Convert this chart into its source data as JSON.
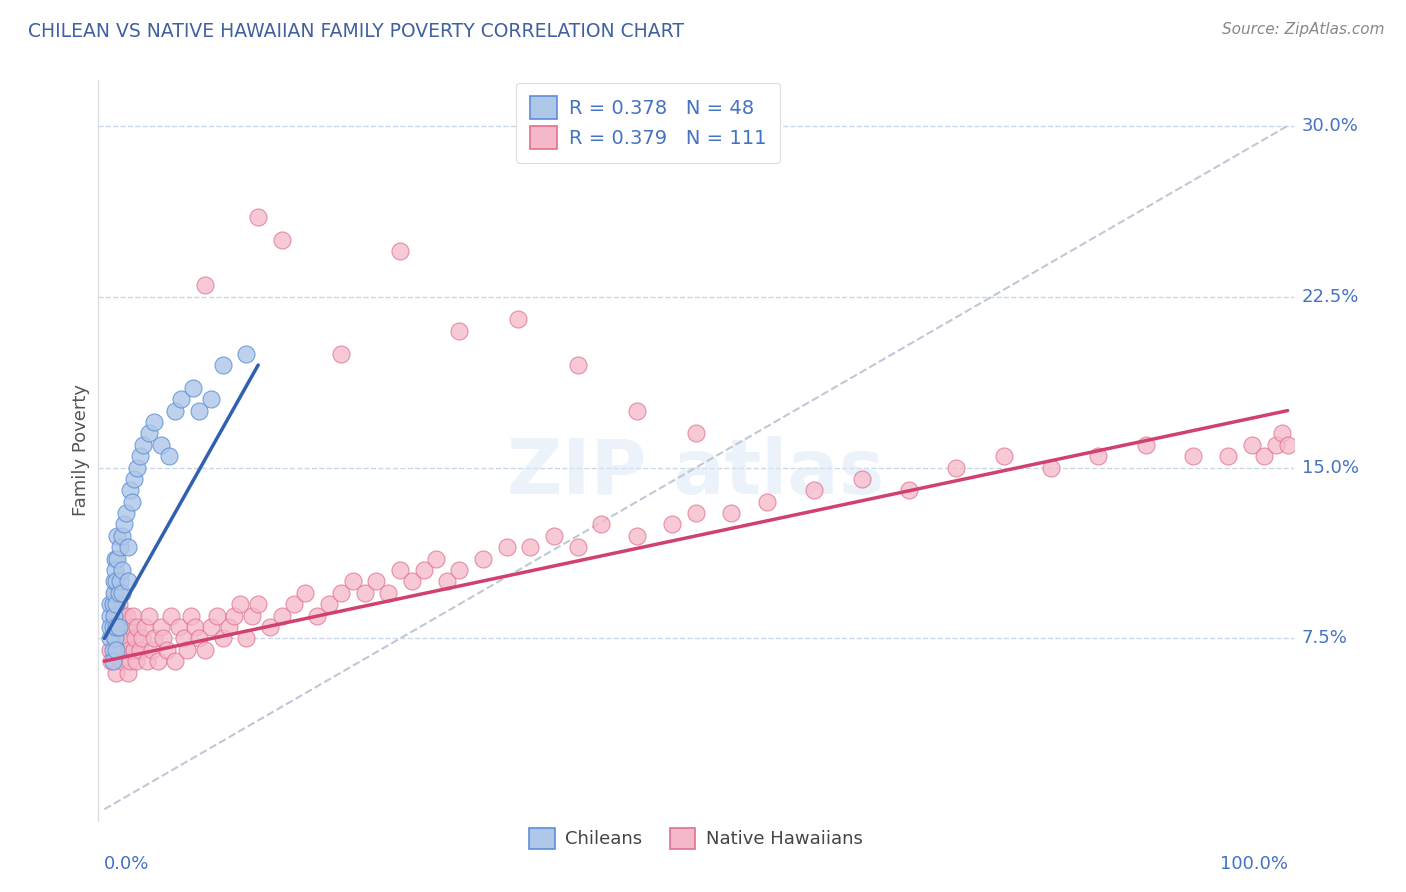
{
  "title": "CHILEAN VS NATIVE HAWAIIAN FAMILY POVERTY CORRELATION CHART",
  "source": "Source: ZipAtlas.com",
  "ylabel": "Family Poverty",
  "color_chilean_fill": "#aec6e8",
  "color_chilean_edge": "#5b8fd4",
  "color_hawaiian_fill": "#f5b8c8",
  "color_hawaiian_edge": "#e07090",
  "color_chilean_line": "#3060b0",
  "color_hawaiian_line": "#d04070",
  "color_ref_line": "#c0c8d8",
  "color_grid": "#c8d8e8",
  "color_title": "#4060a0",
  "color_axis_label": "#4472c4",
  "color_source": "#888888",
  "legend_r1": "R = 0.378   N = 48",
  "legend_r2": "R = 0.379   N = 111",
  "legend_sub1": "Chileans",
  "legend_sub2": "Native Hawaiians",
  "chilean_x": [
    0.005,
    0.005,
    0.005,
    0.005,
    0.007,
    0.007,
    0.007,
    0.007,
    0.008,
    0.008,
    0.008,
    0.009,
    0.009,
    0.009,
    0.01,
    0.01,
    0.01,
    0.01,
    0.011,
    0.011,
    0.012,
    0.012,
    0.013,
    0.013,
    0.015,
    0.015,
    0.015,
    0.017,
    0.018,
    0.02,
    0.02,
    0.022,
    0.023,
    0.025,
    0.028,
    0.03,
    0.033,
    0.038,
    0.042,
    0.048,
    0.055,
    0.06,
    0.065,
    0.075,
    0.08,
    0.09,
    0.1,
    0.12
  ],
  "chilean_y": [
    0.075,
    0.085,
    0.09,
    0.08,
    0.07,
    0.065,
    0.08,
    0.09,
    0.095,
    0.1,
    0.085,
    0.075,
    0.11,
    0.105,
    0.07,
    0.08,
    0.09,
    0.1,
    0.11,
    0.12,
    0.08,
    0.095,
    0.1,
    0.115,
    0.095,
    0.105,
    0.12,
    0.125,
    0.13,
    0.1,
    0.115,
    0.14,
    0.135,
    0.145,
    0.15,
    0.155,
    0.16,
    0.165,
    0.17,
    0.16,
    0.155,
    0.175,
    0.18,
    0.185,
    0.175,
    0.18,
    0.195,
    0.2
  ],
  "chilean_line_x": [
    0.0,
    0.13
  ],
  "chilean_line_y": [
    0.075,
    0.195
  ],
  "hawaiian_x": [
    0.005,
    0.006,
    0.007,
    0.008,
    0.008,
    0.009,
    0.01,
    0.01,
    0.011,
    0.012,
    0.012,
    0.013,
    0.014,
    0.015,
    0.015,
    0.016,
    0.017,
    0.018,
    0.019,
    0.02,
    0.02,
    0.021,
    0.022,
    0.023,
    0.024,
    0.025,
    0.026,
    0.027,
    0.028,
    0.03,
    0.032,
    0.034,
    0.036,
    0.038,
    0.04,
    0.042,
    0.045,
    0.048,
    0.05,
    0.053,
    0.056,
    0.06,
    0.063,
    0.067,
    0.07,
    0.073,
    0.077,
    0.08,
    0.085,
    0.09,
    0.095,
    0.1,
    0.105,
    0.11,
    0.115,
    0.12,
    0.125,
    0.13,
    0.14,
    0.15,
    0.16,
    0.17,
    0.18,
    0.19,
    0.2,
    0.21,
    0.22,
    0.23,
    0.24,
    0.25,
    0.26,
    0.27,
    0.28,
    0.29,
    0.3,
    0.32,
    0.34,
    0.36,
    0.38,
    0.4,
    0.42,
    0.45,
    0.48,
    0.5,
    0.53,
    0.56,
    0.6,
    0.64,
    0.68,
    0.72,
    0.76,
    0.8,
    0.84,
    0.88,
    0.92,
    0.95,
    0.97,
    0.98,
    0.99,
    0.995,
    1.0,
    0.085,
    0.13,
    0.15,
    0.2,
    0.25,
    0.3,
    0.35,
    0.4,
    0.45,
    0.5
  ],
  "hawaiian_y": [
    0.07,
    0.065,
    0.09,
    0.075,
    0.085,
    0.095,
    0.06,
    0.08,
    0.085,
    0.07,
    0.09,
    0.075,
    0.08,
    0.065,
    0.085,
    0.07,
    0.075,
    0.08,
    0.085,
    0.06,
    0.075,
    0.07,
    0.065,
    0.08,
    0.085,
    0.07,
    0.075,
    0.065,
    0.08,
    0.07,
    0.075,
    0.08,
    0.065,
    0.085,
    0.07,
    0.075,
    0.065,
    0.08,
    0.075,
    0.07,
    0.085,
    0.065,
    0.08,
    0.075,
    0.07,
    0.085,
    0.08,
    0.075,
    0.07,
    0.08,
    0.085,
    0.075,
    0.08,
    0.085,
    0.09,
    0.075,
    0.085,
    0.09,
    0.08,
    0.085,
    0.09,
    0.095,
    0.085,
    0.09,
    0.095,
    0.1,
    0.095,
    0.1,
    0.095,
    0.105,
    0.1,
    0.105,
    0.11,
    0.1,
    0.105,
    0.11,
    0.115,
    0.115,
    0.12,
    0.115,
    0.125,
    0.12,
    0.125,
    0.13,
    0.13,
    0.135,
    0.14,
    0.145,
    0.14,
    0.15,
    0.155,
    0.15,
    0.155,
    0.16,
    0.155,
    0.155,
    0.16,
    0.155,
    0.16,
    0.165,
    0.16,
    0.23,
    0.26,
    0.25,
    0.2,
    0.245,
    0.21,
    0.215,
    0.195,
    0.175,
    0.165
  ],
  "hawaiian_line_x": [
    0.0,
    1.0
  ],
  "hawaiian_line_y": [
    0.065,
    0.175
  ],
  "ref_line_x": [
    0.0,
    1.0
  ],
  "ref_line_y": [
    0.0,
    0.3
  ],
  "xlim": [
    -0.005,
    1.005
  ],
  "ylim": [
    -0.005,
    0.32
  ],
  "yticks": [
    0.0,
    0.075,
    0.15,
    0.225,
    0.3
  ],
  "ytick_labels": [
    "",
    "7.5%",
    "15.0%",
    "22.5%",
    "30.0%"
  ]
}
